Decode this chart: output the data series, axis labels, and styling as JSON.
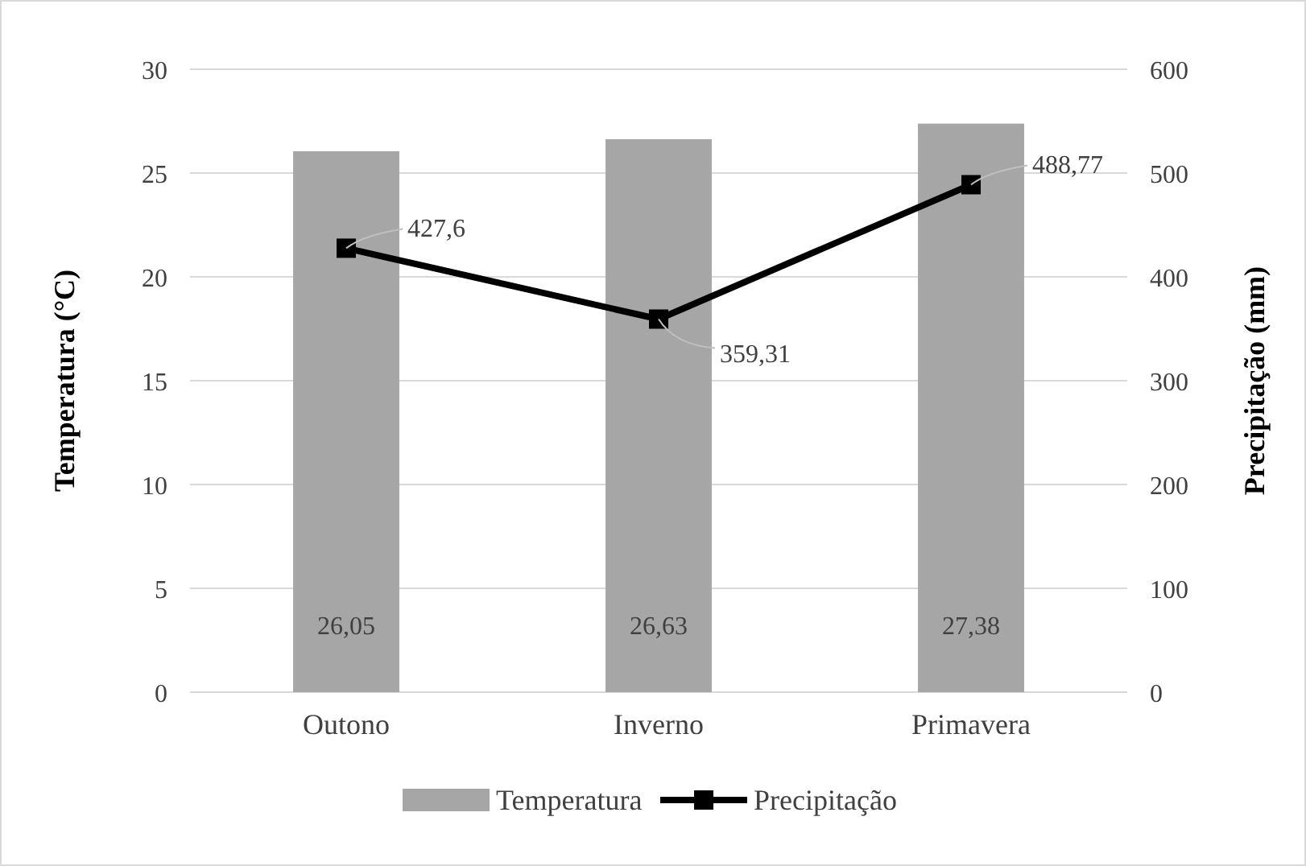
{
  "chart_data": {
    "type": "bar",
    "categories": [
      "Outono",
      "Inverno",
      "Primavera"
    ],
    "ylabel": "Temperatura (°C)",
    "y2label": "Precipitação (mm)",
    "ylim": [
      0,
      30
    ],
    "yticks": [
      0,
      5,
      10,
      15,
      20,
      25,
      30
    ],
    "y2lim": [
      0,
      600
    ],
    "y2ticks": [
      0,
      100,
      200,
      300,
      400,
      500,
      600
    ],
    "series": [
      {
        "name": "Temperatura",
        "color": "#a6a6a6",
        "values": [
          26.05,
          26.63,
          27.38
        ],
        "value_labels": [
          "26,05",
          "26,63",
          "27,38"
        ]
      },
      {
        "name": "Precipitação",
        "type": "line",
        "axis": "y2",
        "color": "#000000",
        "marker": "square",
        "values": [
          427.6,
          359.31,
          488.77
        ],
        "value_labels": [
          "427,6",
          "359,31",
          "488,77"
        ]
      }
    ],
    "grid": "y",
    "legend": "bottom"
  }
}
